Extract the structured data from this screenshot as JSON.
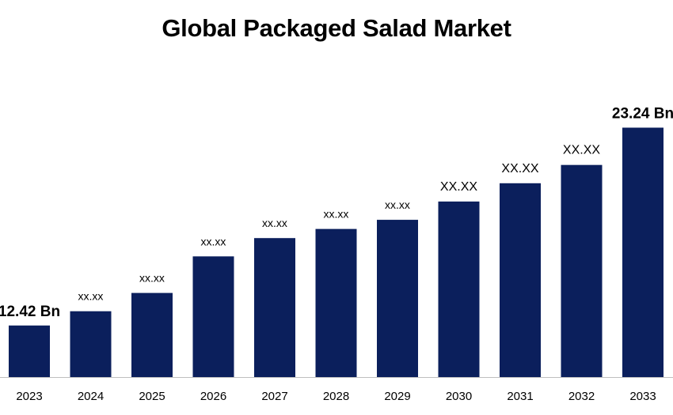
{
  "colors": {
    "bar": "#0b1f5c",
    "axis": "#bfbfbf",
    "text": "#000000"
  },
  "chart_data": {
    "type": "bar",
    "title": "Global Packaged Salad Market",
    "xlabel": "",
    "ylabel": "",
    "grid": false,
    "legend": "none",
    "categories": [
      "2023",
      "2024",
      "2025",
      "2026",
      "2027",
      "2028",
      "2029",
      "2030",
      "2031",
      "2032",
      "2033"
    ],
    "values": [
      12.42,
      13.2,
      14.2,
      16.2,
      17.2,
      17.7,
      18.2,
      19.2,
      20.2,
      21.2,
      23.24
    ],
    "data_labels": [
      "12.42 Bn",
      "xx.xx",
      "xx.xx",
      "xx.xx",
      "xx.xx",
      "xx.xx",
      "xx.xx",
      "XX.XX",
      "XX.XX",
      "XX.XX",
      "23.24 Bn"
    ],
    "ylim": [
      9.6,
      23.65
    ]
  }
}
